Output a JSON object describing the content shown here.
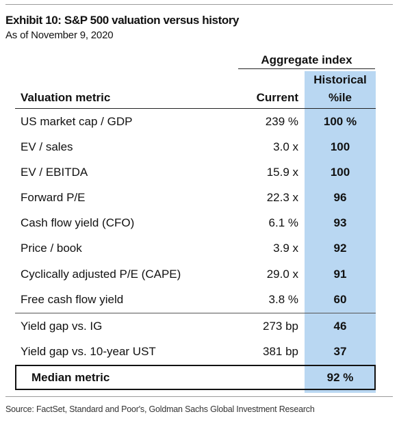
{
  "exhibit": {
    "title": "Exhibit 10: S&P 500 valuation versus history",
    "subtitle": "As of November 9, 2020"
  },
  "table": {
    "group_header": "Aggregate index",
    "headers": {
      "metric": "Valuation metric",
      "current": "Current",
      "historical_line1": "Historical",
      "historical_line2": "%ile"
    },
    "rows": [
      {
        "metric": "US market cap / GDP",
        "current": "239 %",
        "historical": "100 %"
      },
      {
        "metric": "EV / sales",
        "current": "3.0 x",
        "historical": "100"
      },
      {
        "metric": "EV / EBITDA",
        "current": "15.9 x",
        "historical": "100"
      },
      {
        "metric": "Forward P/E",
        "current": "22.3 x",
        "historical": "96"
      },
      {
        "metric": "Cash flow yield (CFO)",
        "current": "6.1 %",
        "historical": "93"
      },
      {
        "metric": "Price / book",
        "current": "3.9 x",
        "historical": "92"
      },
      {
        "metric": "Cyclically adjusted P/E (CAPE)",
        "current": "29.0 x",
        "historical": "91"
      },
      {
        "metric": "Free cash flow yield",
        "current": "3.8 %",
        "historical": "60"
      },
      {
        "metric": "Yield gap vs. IG",
        "current": "273 bp",
        "historical": "46"
      },
      {
        "metric": "Yield gap vs. 10-year UST",
        "current": "381 bp",
        "historical": "37"
      }
    ],
    "median": {
      "metric": "Median metric",
      "historical": "92 %"
    }
  },
  "source": "Source: FactSet, Standard and Poor's, Goldman Sachs Global Investment Research",
  "colors": {
    "historical_column": "#b9d7f2"
  }
}
